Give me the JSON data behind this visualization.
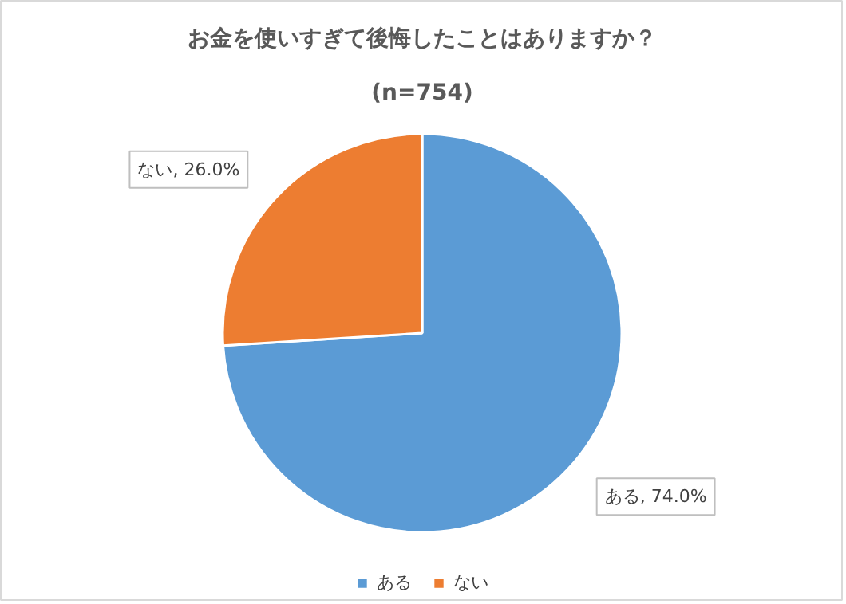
{
  "chart_data": {
    "type": "pie",
    "title": "お金を使いすぎて後悔したことはありますか？",
    "subtitle": "(n=754)",
    "categories": [
      "ある",
      "ない"
    ],
    "values": [
      74.0,
      26.0
    ],
    "colors": [
      "#5b9bd5",
      "#ed7d31"
    ],
    "value_labels": [
      "ある, 74.0%",
      "ない, 26.0%"
    ],
    "legend": "bottom"
  }
}
